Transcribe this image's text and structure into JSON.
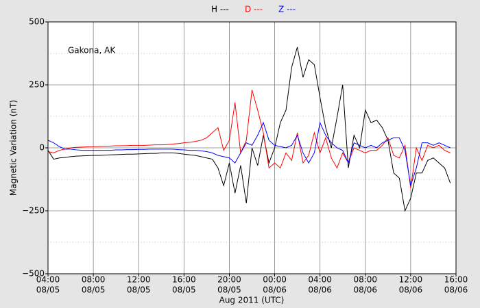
{
  "chart_data": {
    "type": "line",
    "annotation": "Gakona, AK",
    "xlabel": "Aug 2011 (UTC)",
    "ylabel": "Magnetic Variation (nT)",
    "x": [
      "2011-08-05T04:00",
      "2011-08-05T04:30",
      "2011-08-05T05:00",
      "2011-08-05T05:30",
      "2011-08-05T06:00",
      "2011-08-05T06:30",
      "2011-08-05T07:00",
      "2011-08-05T07:30",
      "2011-08-05T08:00",
      "2011-08-05T08:30",
      "2011-08-05T09:00",
      "2011-08-05T09:30",
      "2011-08-05T10:00",
      "2011-08-05T10:30",
      "2011-08-05T11:00",
      "2011-08-05T11:30",
      "2011-08-05T12:00",
      "2011-08-05T12:30",
      "2011-08-05T13:00",
      "2011-08-05T13:30",
      "2011-08-05T14:00",
      "2011-08-05T14:30",
      "2011-08-05T15:00",
      "2011-08-05T15:30",
      "2011-08-05T16:00",
      "2011-08-05T16:30",
      "2011-08-05T17:00",
      "2011-08-05T17:30",
      "2011-08-05T18:00",
      "2011-08-05T18:30",
      "2011-08-05T19:00",
      "2011-08-05T19:30",
      "2011-08-05T20:00",
      "2011-08-05T20:30",
      "2011-08-05T21:00",
      "2011-08-05T21:30",
      "2011-08-05T22:00",
      "2011-08-05T22:30",
      "2011-08-05T23:00",
      "2011-08-05T23:30",
      "2011-08-06T00:00",
      "2011-08-06T00:30",
      "2011-08-06T01:00",
      "2011-08-06T01:30",
      "2011-08-06T02:00",
      "2011-08-06T02:30",
      "2011-08-06T03:00",
      "2011-08-06T03:30",
      "2011-08-06T04:00",
      "2011-08-06T04:30",
      "2011-08-06T05:00",
      "2011-08-06T05:30",
      "2011-08-06T06:00",
      "2011-08-06T06:30",
      "2011-08-06T07:00",
      "2011-08-06T07:30",
      "2011-08-06T08:00",
      "2011-08-06T08:30",
      "2011-08-06T09:00",
      "2011-08-06T09:30",
      "2011-08-06T10:00",
      "2011-08-06T10:30",
      "2011-08-06T11:00",
      "2011-08-06T11:30",
      "2011-08-06T12:00",
      "2011-08-06T12:30",
      "2011-08-06T13:00",
      "2011-08-06T13:30",
      "2011-08-06T14:00",
      "2011-08-06T14:30",
      "2011-08-06T15:00",
      "2011-08-06T15:30"
    ],
    "series": [
      {
        "name": "H ---",
        "color": "#000000",
        "values": [
          -10,
          -45,
          -40,
          -38,
          -35,
          -33,
          -32,
          -31,
          -30,
          -30,
          -29,
          -28,
          -27,
          -26,
          -25,
          -25,
          -24,
          -23,
          -22,
          -22,
          -20,
          -20,
          -20,
          -22,
          -25,
          -28,
          -30,
          -35,
          -40,
          -45,
          -80,
          -150,
          -60,
          -180,
          -70,
          -220,
          0,
          -70,
          50,
          -60,
          0,
          100,
          150,
          320,
          400,
          280,
          350,
          330,
          200,
          80,
          0,
          120,
          250,
          -80,
          50,
          0,
          150,
          100,
          110,
          80,
          30,
          -100,
          -120,
          -250,
          -200,
          -100,
          -100,
          -50,
          -40,
          -60,
          -80,
          -140
        ]
      },
      {
        "name": "D ---",
        "color": "#ff0000",
        "values": [
          -15,
          -20,
          -10,
          -5,
          0,
          2,
          3,
          4,
          5,
          5,
          6,
          7,
          8,
          8,
          9,
          10,
          10,
          10,
          11,
          12,
          12,
          13,
          15,
          17,
          20,
          22,
          25,
          30,
          40,
          60,
          80,
          -10,
          30,
          180,
          -20,
          30,
          230,
          150,
          60,
          -80,
          -60,
          -80,
          -20,
          -50,
          60,
          -60,
          -30,
          60,
          -20,
          40,
          -40,
          -80,
          -20,
          -60,
          0,
          -10,
          -20,
          -10,
          -10,
          10,
          40,
          -30,
          -40,
          10,
          -160,
          0,
          -50,
          10,
          0,
          10,
          -10,
          -20
        ]
      },
      {
        "name": "Z ---",
        "color": "#0000ff",
        "values": [
          30,
          20,
          5,
          -5,
          -5,
          -8,
          -10,
          -10,
          -10,
          -10,
          -10,
          -10,
          -8,
          -8,
          -7,
          -7,
          -6,
          -6,
          -5,
          -5,
          -5,
          -5,
          -5,
          -7,
          -8,
          -10,
          -10,
          -12,
          -15,
          -20,
          -30,
          -35,
          -40,
          -60,
          -20,
          20,
          10,
          50,
          100,
          30,
          10,
          5,
          0,
          10,
          50,
          -20,
          -60,
          -20,
          100,
          50,
          20,
          0,
          -10,
          -60,
          20,
          10,
          0,
          10,
          0,
          20,
          30,
          40,
          40,
          -10,
          -150,
          -80,
          20,
          20,
          10,
          20,
          10,
          0
        ]
      }
    ],
    "xlim": [
      "2011-08-05T04:00",
      "2011-08-06T16:00"
    ],
    "xticks": [
      {
        "value": "2011-08-05T04:00",
        "label": [
          "04:00",
          "08/05"
        ]
      },
      {
        "value": "2011-08-05T08:00",
        "label": [
          "08:00",
          "08/05"
        ]
      },
      {
        "value": "2011-08-05T12:00",
        "label": [
          "12:00",
          "08/05"
        ]
      },
      {
        "value": "2011-08-05T16:00",
        "label": [
          "16:00",
          "08/05"
        ]
      },
      {
        "value": "2011-08-05T20:00",
        "label": [
          "20:00",
          "08/05"
        ]
      },
      {
        "value": "2011-08-06T00:00",
        "label": [
          "00:00",
          "08/06"
        ]
      },
      {
        "value": "2011-08-06T04:00",
        "label": [
          "04:00",
          "08/06"
        ]
      },
      {
        "value": "2011-08-06T08:00",
        "label": [
          "08:00",
          "08/06"
        ]
      },
      {
        "value": "2011-08-06T12:00",
        "label": [
          "12:00",
          "08/06"
        ]
      },
      {
        "value": "2011-08-06T16:00",
        "label": [
          "16:00",
          "08/06"
        ]
      }
    ],
    "ylim": [
      -500,
      500
    ],
    "yticks": [
      {
        "value": -500,
        "label": "−500"
      },
      {
        "value": -250,
        "label": "−250"
      },
      0,
      250,
      500
    ],
    "yminorticks": [
      -375,
      -125,
      125,
      375
    ],
    "grid": true
  }
}
